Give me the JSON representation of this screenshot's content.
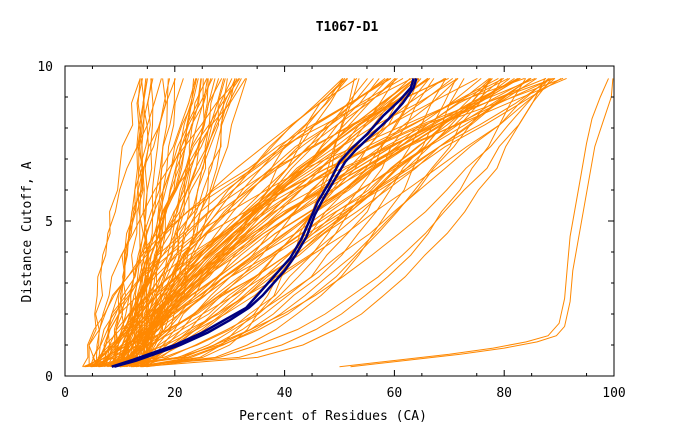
{
  "chart_data": {
    "type": "line",
    "title": "T1067-D1",
    "xlabel": "Percent of Residues (CA)",
    "ylabel": "Distance Cutoff, A",
    "xlim": [
      0,
      100
    ],
    "ylim": [
      0,
      10
    ],
    "x_ticks": [
      "0",
      "20",
      "40",
      "60",
      "80",
      "100"
    ],
    "y_ticks": [
      "0",
      "5",
      "10"
    ],
    "grid": false,
    "highlight_color": "#00007f",
    "bundle_color": "#ff8800",
    "bundle_range": {
      "note_free": true,
      "start_x_min": 3.5,
      "start_x_max": 15,
      "end_x_min": 13,
      "end_x_max": 99.5,
      "count": 130
    },
    "series": [
      {
        "role": "highlight",
        "color": "#00007f",
        "x": [
          8.5,
          12,
          16,
          20,
          25,
          29,
          33,
          35,
          37,
          39,
          41,
          43,
          45,
          46,
          48,
          50,
          52,
          55,
          58,
          61,
          63,
          63.5
        ],
        "y": [
          0.3,
          0.5,
          0.75,
          1.0,
          1.4,
          1.8,
          2.2,
          2.6,
          3.0,
          3.4,
          3.8,
          4.4,
          5.2,
          5.6,
          6.2,
          6.9,
          7.3,
          7.8,
          8.4,
          8.9,
          9.3,
          9.6
        ]
      },
      {
        "role": "highlight",
        "color": "#00007f",
        "x": [
          9,
          13,
          17,
          21,
          26,
          30,
          33.5,
          36,
          38,
          40,
          42,
          44,
          45.5,
          47,
          49,
          51,
          53,
          56,
          59,
          61.5,
          63.5,
          64
        ],
        "y": [
          0.3,
          0.5,
          0.75,
          1.0,
          1.4,
          1.8,
          2.2,
          2.6,
          3.0,
          3.4,
          3.9,
          4.5,
          5.2,
          5.7,
          6.3,
          6.9,
          7.3,
          7.8,
          8.3,
          8.8,
          9.3,
          9.6
        ]
      },
      {
        "role": "outlier",
        "color": "#ff8800",
        "x": [
          50,
          60,
          70,
          78,
          84,
          88,
          90,
          91,
          91.5,
          92,
          93,
          94,
          95,
          96,
          97.5,
          99
        ],
        "y": [
          0.3,
          0.5,
          0.7,
          0.9,
          1.1,
          1.3,
          1.7,
          2.5,
          3.5,
          4.5,
          5.5,
          6.5,
          7.5,
          8.3,
          9.0,
          9.6
        ]
      },
      {
        "role": "outlier",
        "color": "#ff8800",
        "x": [
          52,
          62,
          72,
          80,
          86,
          89.5,
          91,
          92,
          92.5,
          93.5,
          94.5,
          95.5,
          96.5,
          98,
          99.5,
          99.8
        ],
        "y": [
          0.3,
          0.5,
          0.7,
          0.9,
          1.1,
          1.3,
          1.6,
          2.4,
          3.4,
          4.4,
          5.4,
          6.4,
          7.4,
          8.2,
          9.0,
          9.6
        ]
      }
    ]
  }
}
